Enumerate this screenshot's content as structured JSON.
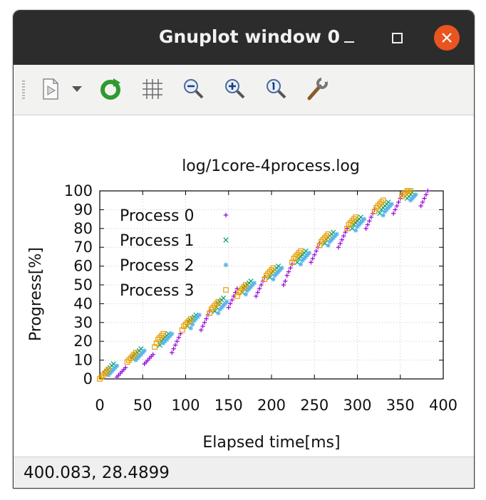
{
  "window": {
    "title": "Gnuplot window 0"
  },
  "toolbar": {
    "items": [
      {
        "name": "copy-to-clipboard",
        "icon": "copy-document-icon"
      },
      {
        "name": "options-dropdown",
        "icon": "chevron-down-icon"
      },
      {
        "name": "replot",
        "icon": "refresh-icon"
      },
      {
        "name": "toggle-grid",
        "icon": "grid-icon"
      },
      {
        "name": "zoom-previous",
        "icon": "zoom-out-icon"
      },
      {
        "name": "zoom-next",
        "icon": "zoom-in-icon"
      },
      {
        "name": "autoscale",
        "icon": "zoom-reset-icon"
      },
      {
        "name": "settings",
        "icon": "wrench-icon"
      }
    ]
  },
  "status": {
    "coords": "400.083,  28.4899"
  },
  "colors": {
    "titlebar": "#2c2c2c",
    "close_button": "#e95420",
    "process0": "#9400d3",
    "process1": "#009e73",
    "process2": "#56b4e9",
    "process3": "#e69f00"
  },
  "chart_data": {
    "type": "scatter",
    "title": "log/1core-4process.log",
    "xlabel": "Elapsed time[ms]",
    "ylabel": "Progress[%]",
    "xlim": [
      0,
      400
    ],
    "ylim": [
      0,
      100
    ],
    "xticks": [
      "0",
      "50",
      "100",
      "150",
      "200",
      "250",
      "300",
      "350",
      "400"
    ],
    "yticks": [
      "0",
      "10",
      "20",
      "30",
      "40",
      "50",
      "60",
      "70",
      "80",
      "90",
      "100"
    ],
    "grid": true,
    "legend_position": "top-left",
    "series": [
      {
        "name": "Process 0",
        "marker": "+",
        "color": "#9400d3",
        "points": [
          [
            20,
            1
          ],
          [
            22,
            2
          ],
          [
            24,
            3
          ],
          [
            26,
            4
          ],
          [
            28,
            5
          ],
          [
            30,
            6
          ],
          [
            52,
            8
          ],
          [
            54,
            9
          ],
          [
            56,
            10
          ],
          [
            58,
            11
          ],
          [
            60,
            12
          ],
          [
            62,
            13
          ],
          [
            84,
            14
          ],
          [
            86,
            16
          ],
          [
            88,
            18
          ],
          [
            90,
            20
          ],
          [
            92,
            22
          ],
          [
            94,
            24
          ],
          [
            118,
            26
          ],
          [
            120,
            28
          ],
          [
            122,
            30
          ],
          [
            124,
            32
          ],
          [
            126,
            34
          ],
          [
            128,
            36
          ],
          [
            150,
            38
          ],
          [
            152,
            40
          ],
          [
            154,
            42
          ],
          [
            156,
            44
          ],
          [
            158,
            46
          ],
          [
            160,
            48
          ],
          [
            182,
            44
          ],
          [
            184,
            46
          ],
          [
            186,
            48
          ],
          [
            188,
            50
          ],
          [
            190,
            52
          ],
          [
            192,
            54
          ],
          [
            214,
            50
          ],
          [
            216,
            52
          ],
          [
            218,
            55
          ],
          [
            220,
            57
          ],
          [
            222,
            59
          ],
          [
            224,
            61
          ],
          [
            246,
            62
          ],
          [
            248,
            64
          ],
          [
            250,
            66
          ],
          [
            252,
            68
          ],
          [
            254,
            70
          ],
          [
            256,
            72
          ],
          [
            278,
            70
          ],
          [
            280,
            72
          ],
          [
            282,
            74
          ],
          [
            284,
            76
          ],
          [
            286,
            78
          ],
          [
            288,
            80
          ],
          [
            310,
            80
          ],
          [
            312,
            82
          ],
          [
            314,
            84
          ],
          [
            316,
            86
          ],
          [
            318,
            88
          ],
          [
            320,
            90
          ],
          [
            342,
            88
          ],
          [
            344,
            90
          ],
          [
            346,
            92
          ],
          [
            348,
            94
          ],
          [
            350,
            96
          ],
          [
            352,
            98
          ],
          [
            374,
            92
          ],
          [
            376,
            94
          ],
          [
            378,
            96
          ],
          [
            380,
            98
          ],
          [
            382,
            100
          ]
        ]
      },
      {
        "name": "Process 1",
        "marker": "x",
        "color": "#009e73",
        "points": [
          [
            6,
            3
          ],
          [
            8,
            4
          ],
          [
            10,
            5
          ],
          [
            12,
            6
          ],
          [
            14,
            7
          ],
          [
            16,
            8
          ],
          [
            38,
            11
          ],
          [
            40,
            12
          ],
          [
            42,
            13
          ],
          [
            44,
            14
          ],
          [
            46,
            15
          ],
          [
            48,
            16
          ],
          [
            70,
            18
          ],
          [
            72,
            20
          ],
          [
            74,
            21
          ],
          [
            76,
            22
          ],
          [
            78,
            23
          ],
          [
            80,
            24
          ],
          [
            102,
            28
          ],
          [
            104,
            30
          ],
          [
            106,
            31
          ],
          [
            108,
            32
          ],
          [
            110,
            33
          ],
          [
            112,
            34
          ],
          [
            134,
            36
          ],
          [
            136,
            38
          ],
          [
            138,
            40
          ],
          [
            140,
            41
          ],
          [
            142,
            42
          ],
          [
            144,
            43
          ],
          [
            166,
            46
          ],
          [
            168,
            48
          ],
          [
            170,
            49
          ],
          [
            172,
            50
          ],
          [
            174,
            51
          ],
          [
            176,
            52
          ],
          [
            198,
            54
          ],
          [
            200,
            56
          ],
          [
            202,
            57
          ],
          [
            204,
            58
          ],
          [
            206,
            59
          ],
          [
            208,
            60
          ],
          [
            230,
            62
          ],
          [
            232,
            64
          ],
          [
            234,
            65
          ],
          [
            236,
            66
          ],
          [
            238,
            67
          ],
          [
            240,
            68
          ],
          [
            262,
            72
          ],
          [
            264,
            74
          ],
          [
            266,
            75
          ],
          [
            268,
            76
          ],
          [
            270,
            77
          ],
          [
            272,
            78
          ],
          [
            294,
            80
          ],
          [
            296,
            82
          ],
          [
            298,
            83
          ],
          [
            300,
            84
          ],
          [
            302,
            85
          ],
          [
            304,
            86
          ],
          [
            326,
            88
          ],
          [
            328,
            90
          ],
          [
            330,
            91
          ],
          [
            332,
            92
          ],
          [
            334,
            93
          ],
          [
            336,
            94
          ],
          [
            358,
            96
          ],
          [
            360,
            97
          ],
          [
            362,
            98
          ],
          [
            364,
            99
          ]
        ]
      },
      {
        "name": "Process 2",
        "marker": "*",
        "color": "#56b4e9",
        "points": [
          [
            10,
            2
          ],
          [
            12,
            3
          ],
          [
            14,
            4
          ],
          [
            16,
            5
          ],
          [
            18,
            6
          ],
          [
            20,
            7
          ],
          [
            42,
            10
          ],
          [
            44,
            11
          ],
          [
            46,
            12
          ],
          [
            48,
            13
          ],
          [
            50,
            14
          ],
          [
            52,
            15
          ],
          [
            74,
            19
          ],
          [
            76,
            20
          ],
          [
            78,
            21
          ],
          [
            80,
            22
          ],
          [
            82,
            23
          ],
          [
            84,
            24
          ],
          [
            106,
            27
          ],
          [
            108,
            29
          ],
          [
            110,
            31
          ],
          [
            112,
            32
          ],
          [
            114,
            33
          ],
          [
            116,
            34
          ],
          [
            138,
            35
          ],
          [
            140,
            37
          ],
          [
            142,
            38
          ],
          [
            144,
            39
          ],
          [
            146,
            40
          ],
          [
            148,
            41
          ],
          [
            170,
            45
          ],
          [
            172,
            47
          ],
          [
            174,
            48
          ],
          [
            176,
            49
          ],
          [
            178,
            50
          ],
          [
            180,
            51
          ],
          [
            202,
            53
          ],
          [
            204,
            55
          ],
          [
            206,
            56
          ],
          [
            208,
            57
          ],
          [
            210,
            58
          ],
          [
            212,
            59
          ],
          [
            234,
            61
          ],
          [
            236,
            63
          ],
          [
            238,
            64
          ],
          [
            240,
            65
          ],
          [
            242,
            66
          ],
          [
            244,
            67
          ],
          [
            266,
            71
          ],
          [
            268,
            73
          ],
          [
            270,
            74
          ],
          [
            272,
            75
          ],
          [
            274,
            76
          ],
          [
            276,
            77
          ],
          [
            298,
            79
          ],
          [
            300,
            81
          ],
          [
            302,
            82
          ],
          [
            304,
            83
          ],
          [
            306,
            84
          ],
          [
            308,
            85
          ],
          [
            330,
            87
          ],
          [
            332,
            89
          ],
          [
            334,
            90
          ],
          [
            336,
            91
          ],
          [
            338,
            92
          ],
          [
            340,
            93
          ],
          [
            362,
            95
          ],
          [
            364,
            96
          ],
          [
            366,
            97
          ],
          [
            368,
            98
          ]
        ]
      },
      {
        "name": "Process 3",
        "marker": "square",
        "color": "#e69f00",
        "points": [
          [
            0,
            0
          ],
          [
            2,
            1
          ],
          [
            4,
            2
          ],
          [
            6,
            3
          ],
          [
            8,
            4
          ],
          [
            10,
            5
          ],
          [
            32,
            9
          ],
          [
            34,
            10
          ],
          [
            36,
            11
          ],
          [
            38,
            12
          ],
          [
            40,
            13
          ],
          [
            42,
            14
          ],
          [
            64,
            17
          ],
          [
            66,
            19
          ],
          [
            68,
            21
          ],
          [
            70,
            22
          ],
          [
            72,
            23
          ],
          [
            74,
            24
          ],
          [
            96,
            26
          ],
          [
            98,
            28
          ],
          [
            100,
            29
          ],
          [
            102,
            30
          ],
          [
            104,
            31
          ],
          [
            106,
            32
          ],
          [
            128,
            35
          ],
          [
            130,
            37
          ],
          [
            132,
            38
          ],
          [
            134,
            39
          ],
          [
            136,
            40
          ],
          [
            138,
            41
          ],
          [
            160,
            44
          ],
          [
            162,
            46
          ],
          [
            164,
            47
          ],
          [
            166,
            48
          ],
          [
            168,
            49
          ],
          [
            170,
            50
          ],
          [
            192,
            53
          ],
          [
            194,
            55
          ],
          [
            196,
            56
          ],
          [
            198,
            57
          ],
          [
            200,
            58
          ],
          [
            202,
            59
          ],
          [
            224,
            62
          ],
          [
            226,
            64
          ],
          [
            228,
            65
          ],
          [
            230,
            66
          ],
          [
            232,
            67
          ],
          [
            234,
            68
          ],
          [
            256,
            71
          ],
          [
            258,
            73
          ],
          [
            260,
            74
          ],
          [
            262,
            75
          ],
          [
            264,
            76
          ],
          [
            266,
            77
          ],
          [
            288,
            80
          ],
          [
            290,
            82
          ],
          [
            292,
            83
          ],
          [
            294,
            84
          ],
          [
            296,
            85
          ],
          [
            298,
            86
          ],
          [
            320,
            89
          ],
          [
            322,
            91
          ],
          [
            324,
            92
          ],
          [
            326,
            93
          ],
          [
            328,
            94
          ],
          [
            330,
            95
          ],
          [
            352,
            97
          ],
          [
            354,
            98
          ],
          [
            356,
            99
          ],
          [
            358,
            100
          ],
          [
            360,
            100
          ],
          [
            362,
            100
          ]
        ]
      }
    ]
  }
}
